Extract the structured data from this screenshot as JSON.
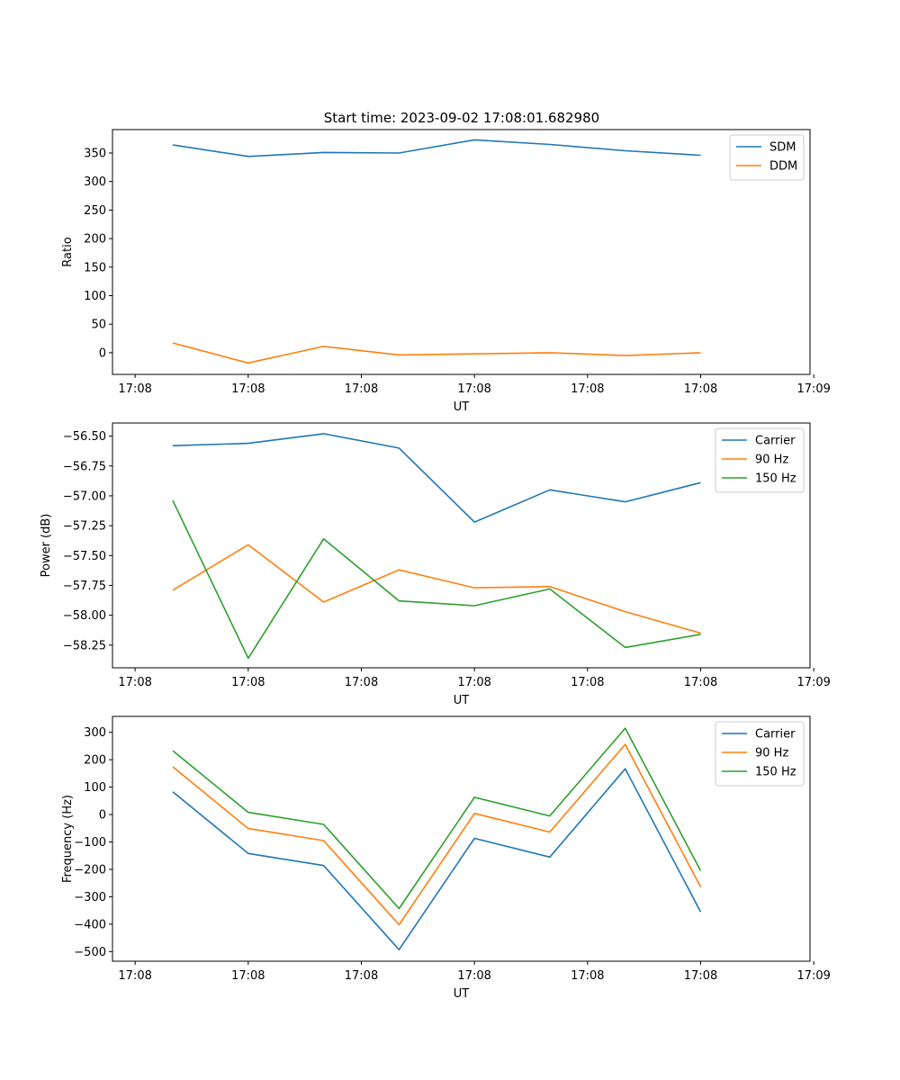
{
  "figure_title": "Start time: 2023-09-02 17:08:01.682980",
  "chart_data": [
    {
      "type": "line",
      "title": "Start time: 2023-09-02 17:08:01.682980",
      "xlabel": "UT",
      "ylabel": "Ratio",
      "x": [
        1,
        2,
        3,
        4,
        5,
        6,
        7,
        8
      ],
      "xlim": [
        0.2,
        9.45
      ],
      "xticks": [
        0.5,
        2,
        3.5,
        5,
        6.5,
        8,
        9.5
      ],
      "xtick_labels": [
        "17:08",
        "17:08",
        "17:08",
        "17:08",
        "17:08",
        "17:08",
        "17:09"
      ],
      "ylim": [
        -38,
        391
      ],
      "yticks": [
        0,
        50,
        100,
        150,
        200,
        250,
        300,
        350
      ],
      "ytick_labels": [
        "0",
        "50",
        "100",
        "150",
        "200",
        "250",
        "300",
        "350"
      ],
      "legend_position": "top-right",
      "series": [
        {
          "name": "SDM",
          "color": "#1f77b4",
          "values": [
            364,
            344,
            351,
            350,
            373,
            365,
            354,
            346
          ]
        },
        {
          "name": "DDM",
          "color": "#ff7f0e",
          "values": [
            17,
            -18,
            11,
            -4,
            -2,
            0,
            -5,
            0
          ]
        }
      ]
    },
    {
      "type": "line",
      "title": "",
      "xlabel": "UT",
      "ylabel": "Power (dB)",
      "x": [
        1,
        2,
        3,
        4,
        5,
        6,
        7,
        8
      ],
      "xlim": [
        0.2,
        9.45
      ],
      "xticks": [
        0.5,
        2,
        3.5,
        5,
        6.5,
        8,
        9.5
      ],
      "xtick_labels": [
        "17:08",
        "17:08",
        "17:08",
        "17:08",
        "17:08",
        "17:08",
        "17:09"
      ],
      "ylim": [
        -58.44,
        -56.39
      ],
      "yticks": [
        -58.25,
        -58.0,
        -57.75,
        -57.5,
        -57.25,
        -57.0,
        -56.75,
        -56.5
      ],
      "ytick_labels": [
        "−58.25",
        "−58.00",
        "−57.75",
        "−57.50",
        "−57.25",
        "−57.00",
        "−56.75",
        "−56.50"
      ],
      "legend_position": "top-right",
      "series": [
        {
          "name": "Carrier",
          "color": "#1f77b4",
          "values": [
            -56.58,
            -56.56,
            -56.48,
            -56.6,
            -57.22,
            -56.95,
            -57.05,
            -56.89
          ]
        },
        {
          "name": "90 Hz",
          "color": "#ff7f0e",
          "values": [
            -57.79,
            -57.41,
            -57.89,
            -57.62,
            -57.77,
            -57.76,
            -57.97,
            -58.15
          ]
        },
        {
          "name": "150 Hz",
          "color": "#2ca02c",
          "values": [
            -57.04,
            -58.36,
            -57.36,
            -57.88,
            -57.92,
            -57.78,
            -58.27,
            -58.16
          ]
        }
      ]
    },
    {
      "type": "line",
      "title": "",
      "xlabel": "UT",
      "ylabel": "Frequency (Hz)",
      "x": [
        1,
        2,
        3,
        4,
        5,
        6,
        7,
        8
      ],
      "xlim": [
        0.2,
        9.45
      ],
      "xticks": [
        0.5,
        2,
        3.5,
        5,
        6.5,
        8,
        9.5
      ],
      "xtick_labels": [
        "17:08",
        "17:08",
        "17:08",
        "17:08",
        "17:08",
        "17:08",
        "17:09"
      ],
      "ylim": [
        -535,
        358
      ],
      "yticks": [
        -500,
        -400,
        -300,
        -200,
        -100,
        0,
        100,
        200,
        300
      ],
      "ytick_labels": [
        "−500",
        "−400",
        "−300",
        "−200",
        "−100",
        "0",
        "100",
        "200",
        "300"
      ],
      "legend_position": "top-right",
      "series": [
        {
          "name": "Carrier",
          "color": "#1f77b4",
          "values": [
            83,
            -142,
            -186,
            -493,
            -87,
            -155,
            167,
            -355
          ]
        },
        {
          "name": "90 Hz",
          "color": "#ff7f0e",
          "values": [
            174,
            -51,
            -95,
            -402,
            4,
            -64,
            256,
            -264
          ]
        },
        {
          "name": "150 Hz",
          "color": "#2ca02c",
          "values": [
            233,
            8,
            -36,
            -343,
            63,
            -5,
            315,
            -205
          ]
        }
      ]
    }
  ]
}
